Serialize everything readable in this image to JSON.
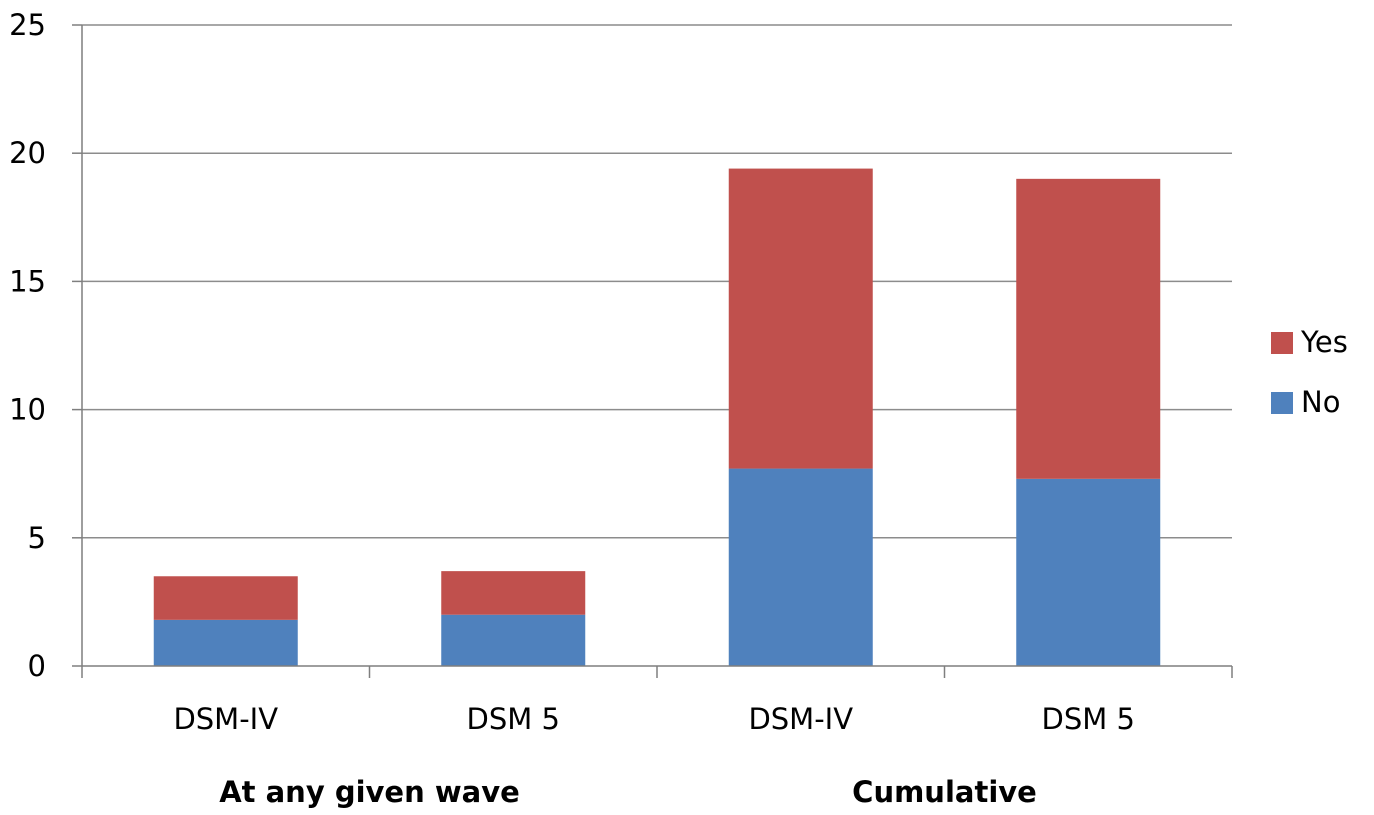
{
  "chart_data": {
    "type": "bar",
    "stacked": true,
    "categories": [
      "DSM-IV",
      "DSM 5",
      "DSM-IV",
      "DSM 5"
    ],
    "groups": [
      {
        "label": "At any given wave",
        "categories": [
          0,
          1
        ]
      },
      {
        "label": "Cumulative",
        "categories": [
          2,
          3
        ]
      }
    ],
    "series": [
      {
        "name": "No",
        "color": "#4f81bd",
        "values": [
          1.8,
          2.0,
          7.7,
          7.3
        ]
      },
      {
        "name": "Yes",
        "color": "#c0504d",
        "values": [
          1.7,
          1.7,
          11.7,
          11.7
        ]
      }
    ],
    "ylim": [
      0,
      25
    ],
    "yticks": [
      0,
      5,
      10,
      15,
      20,
      25
    ],
    "grid": true,
    "legend": {
      "position": "right",
      "order": [
        "Yes",
        "No"
      ]
    },
    "title": "",
    "xlabel": "",
    "ylabel": ""
  }
}
